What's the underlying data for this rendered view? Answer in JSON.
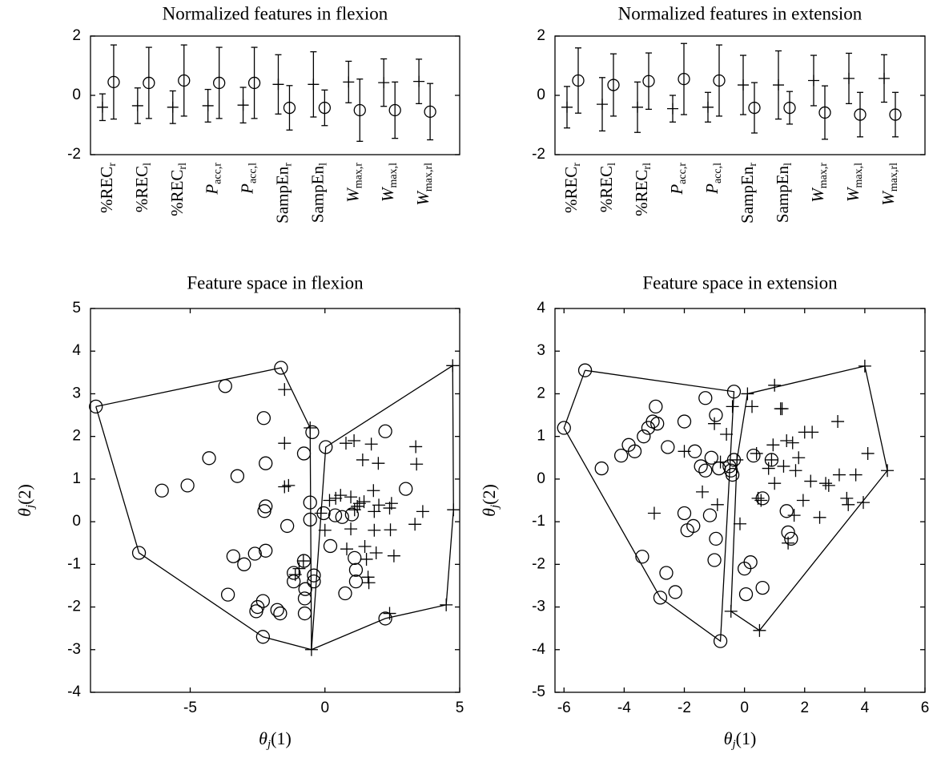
{
  "chart_data": [
    {
      "type": "errorbar",
      "title": "Normalized features in flexion",
      "categories": [
        {
          "text": "%REC",
          "sub": "r"
        },
        {
          "text": "%REC",
          "sub": "l"
        },
        {
          "text": "%REC",
          "sub": "rl"
        },
        {
          "text": "P",
          "sub": "acc,r",
          "italic": true
        },
        {
          "text": "P",
          "sub": "acc,l",
          "italic": true
        },
        {
          "text": "SampEn",
          "sub": "r"
        },
        {
          "text": "SampEn",
          "sub": "l"
        },
        {
          "text": "W",
          "sub": "max,r",
          "italic": true
        },
        {
          "text": "W",
          "sub": "max,l",
          "italic": true
        },
        {
          "text": "W",
          "sub": "max,rl",
          "italic": true
        }
      ],
      "series": [
        {
          "marker": "+",
          "color": "#000000",
          "values": [
            -0.4,
            -0.35,
            -0.4,
            -0.35,
            -0.33,
            0.37,
            0.37,
            0.45,
            0.43,
            0.47
          ],
          "errors": [
            0.45,
            0.6,
            0.55,
            0.55,
            0.6,
            1.0,
            1.1,
            0.7,
            0.8,
            0.75
          ]
        },
        {
          "marker": "o",
          "color": "#000000",
          "values": [
            0.45,
            0.42,
            0.5,
            0.42,
            0.42,
            -0.42,
            -0.42,
            -0.5,
            -0.5,
            -0.55
          ],
          "errors": [
            1.25,
            1.2,
            1.2,
            1.2,
            1.2,
            0.75,
            0.6,
            1.05,
            0.95,
            0.95
          ]
        }
      ],
      "ylim": [
        -2,
        2
      ],
      "yticks": [
        -2,
        0,
        2
      ]
    },
    {
      "type": "errorbar",
      "title": "Normalized features in extension",
      "categories": [
        {
          "text": "%REC",
          "sub": "r"
        },
        {
          "text": "%REC",
          "sub": "l"
        },
        {
          "text": "%REC",
          "sub": "rl"
        },
        {
          "text": "P",
          "sub": "acc,r",
          "italic": true
        },
        {
          "text": "P",
          "sub": "acc,l",
          "italic": true
        },
        {
          "text": "SampEn",
          "sub": "r"
        },
        {
          "text": "SampEn",
          "sub": "l"
        },
        {
          "text": "W",
          "sub": "max,r",
          "italic": true
        },
        {
          "text": "W",
          "sub": "max,l",
          "italic": true
        },
        {
          "text": "W",
          "sub": "max,rl",
          "italic": true
        }
      ],
      "series": [
        {
          "marker": "+",
          "color": "#000000",
          "values": [
            -0.4,
            -0.3,
            -0.4,
            -0.45,
            -0.4,
            0.35,
            0.35,
            0.5,
            0.57,
            0.57
          ],
          "errors": [
            0.7,
            0.9,
            0.85,
            0.45,
            0.5,
            1.0,
            1.15,
            0.85,
            0.85,
            0.8
          ]
        },
        {
          "marker": "o",
          "color": "#000000",
          "values": [
            0.5,
            0.35,
            0.48,
            0.55,
            0.5,
            -0.42,
            -0.42,
            -0.58,
            -0.65,
            -0.65
          ],
          "errors": [
            1.1,
            1.05,
            0.95,
            1.2,
            1.2,
            0.85,
            0.55,
            0.9,
            0.75,
            0.75
          ]
        }
      ],
      "ylim": [
        -2,
        2
      ],
      "yticks": [
        -2,
        0,
        2
      ]
    },
    {
      "type": "scatter",
      "title": "Feature space in flexion",
      "x_label": {
        "symbol": "θ",
        "sub": "j",
        "arg": "(1)"
      },
      "y_label": {
        "symbol": "θ",
        "sub": "j",
        "arg": "(2)"
      },
      "series": [
        {
          "marker": "o",
          "color": "#000000",
          "x": [
            -8.5,
            -6.9,
            -6.05,
            -5.1,
            -4.3,
            -3.7,
            -3.25,
            -3.6,
            -3.4,
            -3.0,
            -2.6,
            -2.5,
            -2.55,
            -2.3,
            -2.27,
            -2.2,
            -2.2,
            -2.25,
            -2.2,
            -2.3,
            -1.77,
            -1.66,
            -1.63,
            -1.4,
            -1.16,
            -1.16,
            -0.78,
            -0.78,
            -0.73,
            -0.75,
            -0.75,
            -0.55,
            -0.55,
            -0.47,
            -0.41,
            -0.41,
            -0.05,
            0.03,
            0.2,
            0.38,
            0.64,
            0.75,
            1.0,
            1.1,
            1.15,
            1.15,
            2.24,
            2.24,
            3.0
          ],
          "y": [
            2.7,
            -0.73,
            0.73,
            0.85,
            1.49,
            3.18,
            1.07,
            -1.71,
            -0.81,
            -1.0,
            -0.75,
            -2.0,
            -2.1,
            -1.86,
            2.43,
            1.37,
            0.36,
            0.25,
            -0.68,
            -2.7,
            -2.07,
            -2.15,
            3.61,
            -0.1,
            -1.2,
            -1.4,
            1.6,
            -0.92,
            -1.58,
            -1.8,
            -2.15,
            0.45,
            0.05,
            2.1,
            -1.26,
            -1.4,
            0.2,
            1.75,
            -0.57,
            0.15,
            0.11,
            -1.68,
            0.17,
            -0.85,
            -1.13,
            -1.4,
            2.12,
            -2.27,
            0.77
          ]
        },
        {
          "marker": "+",
          "color": "#000000",
          "x": [
            -1.5,
            -1.5,
            -1.5,
            -1.35,
            -1.1,
            -0.96,
            -0.8,
            -0.55,
            -0.5,
            -0.15,
            0.0,
            0.17,
            0.4,
            0.58,
            0.78,
            0.81,
            0.96,
            0.96,
            1.08,
            1.1,
            1.2,
            1.28,
            1.4,
            1.45,
            1.48,
            1.54,
            1.6,
            1.63,
            1.72,
            1.8,
            1.83,
            1.83,
            1.9,
            1.98,
            2.0,
            2.4,
            2.43,
            2.4,
            2.47,
            2.56,
            3.37,
            3.4,
            3.34,
            3.63,
            4.5,
            4.74,
            4.77
          ],
          "y": [
            3.1,
            1.84,
            0.82,
            0.85,
            -1.24,
            -1.1,
            -0.92,
            2.2,
            -3.0,
            0.2,
            -0.2,
            0.5,
            0.55,
            0.62,
            1.84,
            -0.64,
            0.58,
            -0.17,
            1.9,
            0.28,
            0.36,
            0.43,
            1.45,
            0.47,
            -0.58,
            -0.88,
            -1.3,
            -1.43,
            1.82,
            0.73,
            0.24,
            -0.2,
            -0.73,
            1.37,
            0.39,
            0.32,
            -0.19,
            -2.15,
            0.43,
            -0.8,
            1.76,
            1.35,
            -0.06,
            0.24,
            -1.95,
            3.66,
            0.28
          ]
        }
      ],
      "lines": [
        {
          "color": "#000000",
          "x": [
            -8.5,
            -1.63,
            -0.55,
            -0.5,
            -2.3,
            -6.9,
            -8.5
          ],
          "y": [
            2.7,
            3.61,
            2.2,
            -3.0,
            -2.7,
            -0.73,
            2.7
          ]
        },
        {
          "color": "#000000",
          "x": [
            -0.5,
            0.03,
            4.74,
            4.77,
            4.5,
            2.24,
            -0.5
          ],
          "y": [
            -3.0,
            1.75,
            3.66,
            0.28,
            -1.95,
            -2.27,
            -3.0
          ]
        }
      ],
      "xlim": [
        -8.7,
        5
      ],
      "xticks": [
        -5,
        0,
        5
      ],
      "ylim": [
        -4,
        5
      ],
      "yticks": [
        -4,
        -3,
        -2,
        -1,
        0,
        1,
        2,
        3,
        4,
        5
      ]
    },
    {
      "type": "scatter",
      "title": "Feature space in extension",
      "x_label": {
        "symbol": "θ",
        "sub": "j",
        "arg": "(1)"
      },
      "y_label": {
        "symbol": "θ",
        "sub": "j",
        "arg": "(2)"
      },
      "series": [
        {
          "marker": "o",
          "color": "#000000",
          "x": [
            -6.0,
            -5.3,
            -4.75,
            -4.1,
            -3.85,
            -3.65,
            -3.35,
            -3.2,
            -3.05,
            -2.95,
            -2.9,
            -3.4,
            -2.55,
            -2.6,
            -2.3,
            -2.8,
            -2.0,
            -2.0,
            -1.9,
            -1.7,
            -1.65,
            -1.45,
            -1.3,
            -1.3,
            -1.15,
            -1.1,
            -1.0,
            -0.95,
            -0.95,
            -0.85,
            -0.8,
            -0.5,
            -0.45,
            -0.4,
            -0.35,
            -0.35,
            0.0,
            0.05,
            0.2,
            0.3,
            0.6,
            0.6,
            0.9,
            1.4,
            1.45,
            1.55
          ],
          "y": [
            1.2,
            2.55,
            0.25,
            0.55,
            0.8,
            0.65,
            1.0,
            1.2,
            1.35,
            1.7,
            1.3,
            -1.82,
            0.75,
            -2.2,
            -2.65,
            -2.78,
            1.35,
            -0.8,
            -1.2,
            -1.1,
            0.65,
            0.3,
            0.2,
            1.9,
            -0.85,
            0.5,
            -1.9,
            1.5,
            -1.4,
            0.25,
            -3.8,
            0.3,
            0.2,
            0.1,
            2.05,
            0.45,
            -2.1,
            -2.7,
            -1.95,
            0.55,
            -0.45,
            -2.55,
            0.45,
            -0.75,
            -1.25,
            -1.4
          ]
        },
        {
          "marker": "+",
          "color": "#000000",
          "x": [
            -3.0,
            -2.0,
            -1.4,
            -1.0,
            -0.9,
            -0.8,
            -0.6,
            -0.4,
            -0.25,
            -0.45,
            0.1,
            -0.15,
            0.25,
            0.4,
            0.45,
            0.5,
            0.55,
            0.8,
            0.9,
            0.95,
            1.0,
            1.0,
            1.2,
            1.25,
            1.3,
            1.4,
            1.45,
            1.6,
            1.65,
            1.7,
            1.8,
            1.95,
            2.0,
            2.2,
            2.25,
            2.5,
            2.7,
            2.8,
            3.1,
            3.15,
            3.4,
            3.45,
            3.7,
            3.95,
            4.1,
            4.0,
            4.75
          ],
          "y": [
            -0.8,
            0.65,
            -0.3,
            1.3,
            -0.6,
            0.4,
            1.05,
            1.7,
            0.45,
            -3.1,
            2.0,
            -1.05,
            1.7,
            0.6,
            -0.45,
            -3.55,
            -0.5,
            0.25,
            0.45,
            0.8,
            -0.1,
            2.2,
            1.65,
            1.65,
            0.3,
            0.9,
            -1.5,
            0.85,
            -0.85,
            0.2,
            0.5,
            -0.5,
            1.1,
            -0.05,
            1.1,
            -0.9,
            -0.1,
            -0.15,
            1.35,
            0.1,
            -0.45,
            -0.6,
            0.1,
            -0.55,
            0.6,
            2.65,
            0.2
          ]
        }
      ],
      "lines": [
        {
          "color": "#000000",
          "x": [
            -5.3,
            -0.35,
            -0.8,
            -2.8,
            -6.0,
            -5.3
          ],
          "y": [
            2.55,
            2.05,
            -3.8,
            -2.78,
            1.2,
            2.55
          ]
        },
        {
          "color": "#000000",
          "x": [
            0.1,
            4.0,
            4.75,
            0.5,
            -0.45,
            -0.25,
            0.1
          ],
          "y": [
            2.0,
            2.65,
            0.2,
            -3.55,
            -3.1,
            0.45,
            2.0
          ]
        }
      ],
      "xlim": [
        -6.3,
        6
      ],
      "xticks": [
        -6,
        -4,
        -2,
        0,
        2,
        4,
        6
      ],
      "ylim": [
        -5,
        4
      ],
      "yticks": [
        -5,
        -4,
        -3,
        -2,
        -1,
        0,
        1,
        2,
        3,
        4
      ]
    }
  ]
}
